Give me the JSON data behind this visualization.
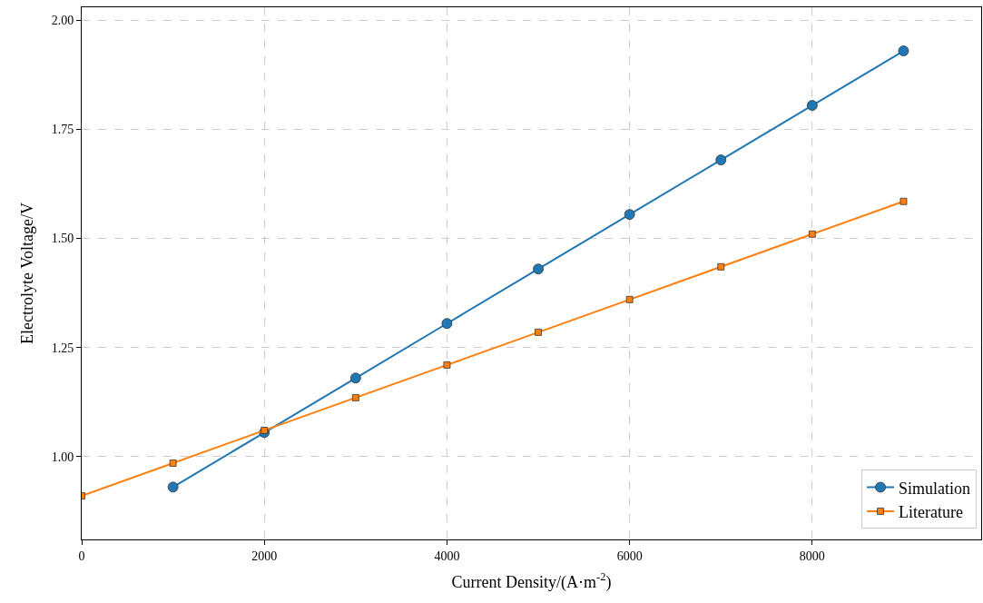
{
  "chart_data": {
    "type": "line",
    "xlabel": "Current Density/(A·m$^{-2}$)",
    "ylabel": "Electrolyte Voltage/V",
    "xlim": [
      0,
      9850
    ],
    "ylim": [
      0.81,
      2.03
    ],
    "xticks": [
      0,
      2000,
      4000,
      6000,
      8000
    ],
    "yticks": [
      {
        "value": 1.0,
        "label": "1.00"
      },
      {
        "value": 1.25,
        "label": "1.25"
      },
      {
        "value": 1.5,
        "label": "1.50"
      },
      {
        "value": 1.75,
        "label": "1.75"
      },
      {
        "value": 2.0,
        "label": "2.00"
      }
    ],
    "grid": true,
    "legend": "bottom right",
    "line_style": "solid",
    "series": [
      {
        "name": "Simulation",
        "color": "#1f77b4",
        "marker": "circle",
        "x": [
          1000,
          2000,
          3000,
          4000,
          5000,
          6000,
          7000,
          8000,
          9000
        ],
        "values": [
          0.93,
          1.055,
          1.18,
          1.305,
          1.43,
          1.555,
          1.68,
          1.805,
          1.93
        ]
      },
      {
        "name": "Literature",
        "color": "#ff7f0e",
        "marker": "square",
        "x": [
          0,
          1000,
          2000,
          3000,
          4000,
          5000,
          6000,
          7000,
          8000,
          9000
        ],
        "values": [
          0.91,
          0.985,
          1.06,
          1.135,
          1.21,
          1.285,
          1.36,
          1.435,
          1.51,
          1.585
        ]
      }
    ]
  }
}
